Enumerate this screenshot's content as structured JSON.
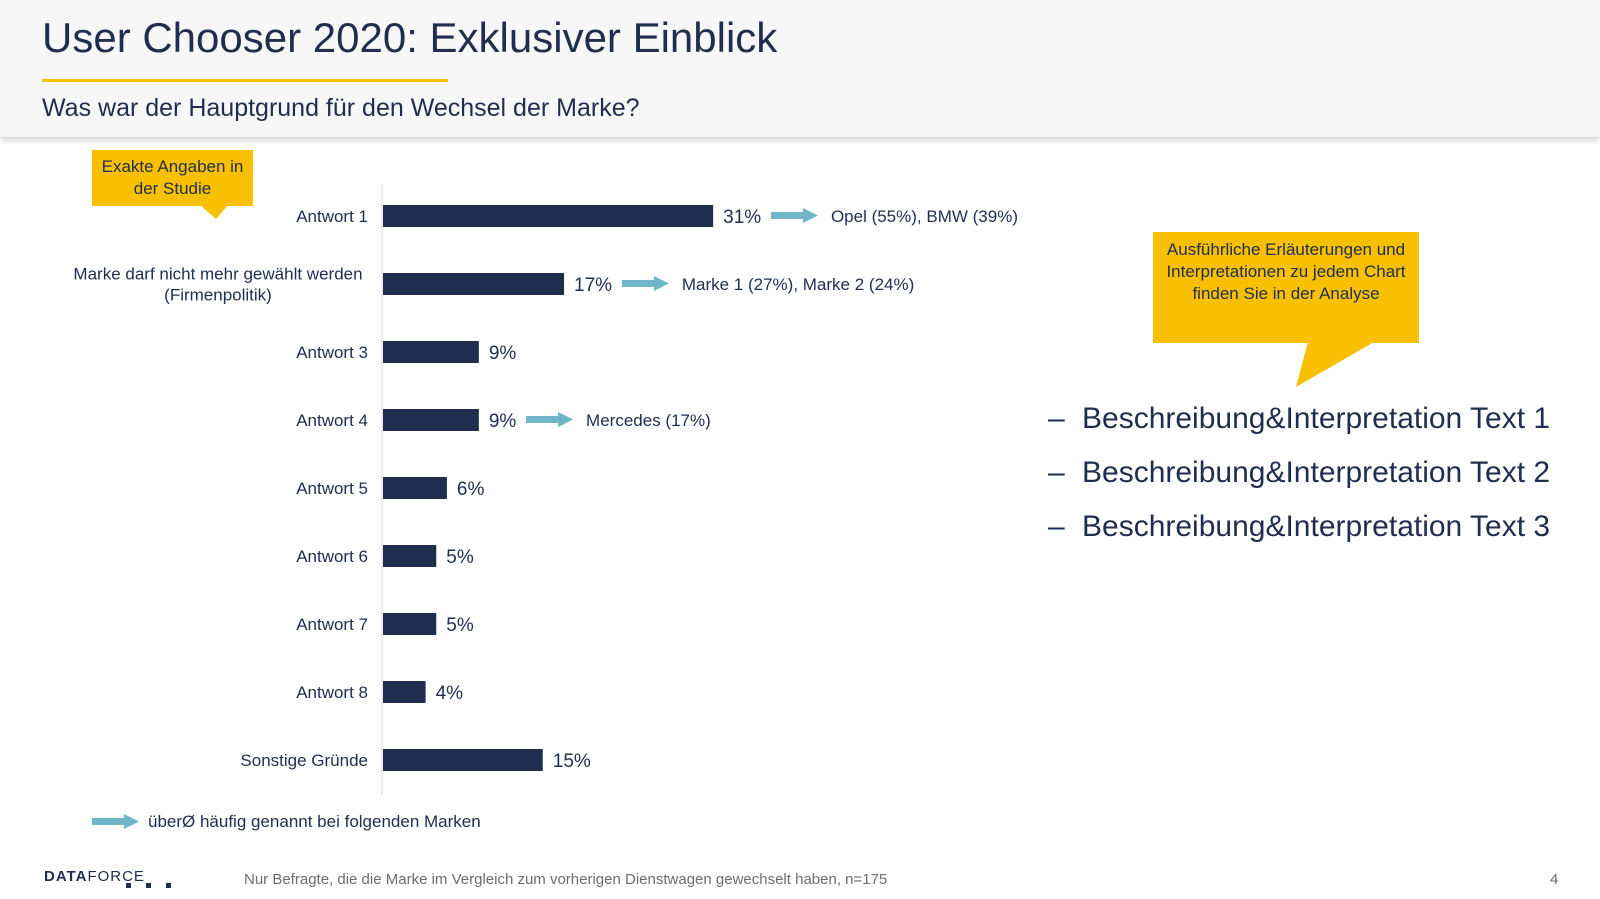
{
  "slide": {
    "title": "User Chooser 2020: Exklusiver Einblick",
    "subtitle": "Was war der Hauptgrund für den Wechsel der Marke?",
    "page_number": "4"
  },
  "callouts": {
    "left": "Exakte Angaben in der Studie",
    "right": "Ausführliche Erläuterungen und Interpretationen zu jedem Chart finden Sie in der Analyse"
  },
  "legend": {
    "text": "überØ häufig genannt bei folgenden Marken"
  },
  "bullets": [
    "Beschreibung&Interpretation Text 1",
    "Beschreibung&Interpretation Text 2",
    "Beschreibung&Interpretation Text 3"
  ],
  "footer": {
    "logo_bold": "DATA",
    "logo_light": "FORCE",
    "footnote": "Nur Befragte, die die Marke im Vergleich zum vorherigen Dienstwagen gewechselt haben, n=175"
  },
  "colors": {
    "bar": "#1f2d4e",
    "arrow": "#6fb6c9",
    "callout": "#f8c000",
    "accent_rule": "#f6c000"
  },
  "chart_data": {
    "type": "bar",
    "orientation": "horizontal",
    "categories": [
      [
        "Antwort 1"
      ],
      [
        "Marke darf nicht mehr gewählt werden",
        "(Firmenpolitik)"
      ],
      [
        "Antwort 3"
      ],
      [
        "Antwort 4"
      ],
      [
        "Antwort 5"
      ],
      [
        "Antwort 6"
      ],
      [
        "Antwort 7"
      ],
      [
        "Antwort 8"
      ],
      [
        "Sonstige Gründe"
      ]
    ],
    "values": [
      31,
      17,
      9,
      9,
      6,
      5,
      5,
      4,
      15
    ],
    "value_labels": [
      "31%",
      "17%",
      "9%",
      "9%",
      "6%",
      "5%",
      "5%",
      "4%",
      "15%"
    ],
    "annotations": [
      "Opel (55%), BMW (39%)",
      "Marke 1 (27%), Marke 2 (24%)",
      "",
      "Mercedes (17%)",
      "",
      "",
      "",
      "",
      ""
    ],
    "unit": "%",
    "grid": false
  }
}
